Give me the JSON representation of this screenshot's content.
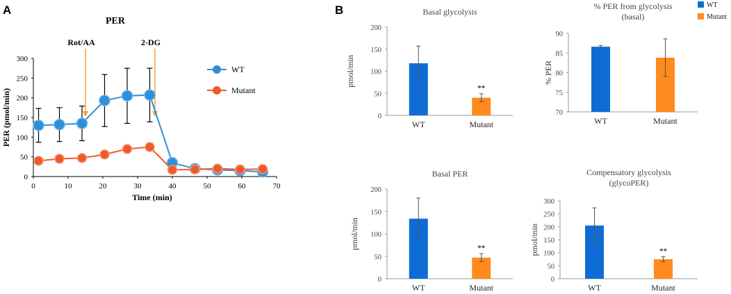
{
  "panels": {
    "a": "A",
    "b": "B"
  },
  "chart_data": [
    {
      "type": "line",
      "title": "PER",
      "xlabel": "Time (min)",
      "ylabel": "PER  (pmol/min)",
      "xlim": [
        0,
        70
      ],
      "ylim": [
        0,
        300
      ],
      "xticks": [
        "0",
        "10",
        "20",
        "30",
        "40",
        "50",
        "60",
        "70"
      ],
      "yticks": [
        "0",
        "50",
        "100",
        "150",
        "200",
        "250",
        "300"
      ],
      "x": [
        1.5,
        7.5,
        14,
        20.5,
        27,
        33.5,
        40,
        46.5,
        53,
        59.5,
        66
      ],
      "series": [
        {
          "name": "WT",
          "color": "#2E8FD9",
          "values": [
            130,
            132,
            135,
            193,
            205,
            207,
            35,
            20,
            17,
            15,
            12
          ],
          "error": [
            43,
            43,
            44,
            66,
            70,
            68,
            12,
            5,
            5,
            5,
            5
          ]
        },
        {
          "name": "Mutant",
          "color": "#F05A28",
          "values": [
            40,
            45,
            47,
            56,
            70,
            75,
            17,
            18,
            20,
            18,
            19
          ],
          "error": [
            3,
            3,
            3,
            8,
            5,
            10,
            3,
            3,
            3,
            3,
            3
          ]
        }
      ],
      "annotations": [
        {
          "label": "Rot/AA",
          "x": 15
        },
        {
          "label": "2-DG",
          "x": 35
        }
      ],
      "arrow_color": "#F5A030",
      "legend": "right"
    },
    {
      "type": "bar",
      "title": "Basal glycolysis",
      "ylabel": "pmol/min",
      "ylim": [
        0,
        200
      ],
      "yticks": [
        "0",
        "50",
        "100",
        "150",
        "200"
      ],
      "categories": [
        "WT",
        "Mutant"
      ],
      "values": [
        118,
        40
      ],
      "error": [
        39,
        9
      ],
      "colors": [
        "#0E6CD4",
        "#FF8A1E"
      ],
      "sig": [
        "",
        "**"
      ]
    },
    {
      "type": "bar",
      "title": "% PER from glycolysis",
      "subtitle": "(basal)",
      "ylabel": "% PER",
      "ylim": [
        70,
        90
      ],
      "yticks": [
        "70",
        "75",
        "80",
        "85",
        "90"
      ],
      "categories": [
        "WT",
        "Mutant"
      ],
      "values": [
        86.6,
        83.8
      ],
      "error": [
        0.3,
        4.8
      ],
      "colors": [
        "#0E6CD4",
        "#FF8A1E"
      ],
      "sig": [
        "",
        ""
      ],
      "legend": {
        "items": [
          "WT",
          "Mutant"
        ],
        "position": "top-right"
      }
    },
    {
      "type": "bar",
      "title": "Basal PER",
      "ylabel": "pmol/min",
      "ylim": [
        0,
        200
      ],
      "yticks": [
        "0",
        "50",
        "100",
        "150",
        "200"
      ],
      "categories": [
        "WT",
        "Mutant"
      ],
      "values": [
        134,
        47
      ],
      "error": [
        46,
        9
      ],
      "colors": [
        "#0E6CD4",
        "#FF8A1E"
      ],
      "sig": [
        "",
        "**"
      ]
    },
    {
      "type": "bar",
      "title": "Compensatory glycolysis",
      "subtitle": "(glycoPER)",
      "ylabel": "pmol/min",
      "ylim": [
        0,
        300
      ],
      "yticks": [
        "0",
        "50",
        "100",
        "150",
        "200",
        "250",
        "300"
      ],
      "categories": [
        "WT",
        "Mutant"
      ],
      "values": [
        205,
        75
      ],
      "error": [
        68,
        10
      ],
      "colors": [
        "#0E6CD4",
        "#FF8A1E"
      ],
      "sig": [
        "",
        "**"
      ]
    }
  ]
}
